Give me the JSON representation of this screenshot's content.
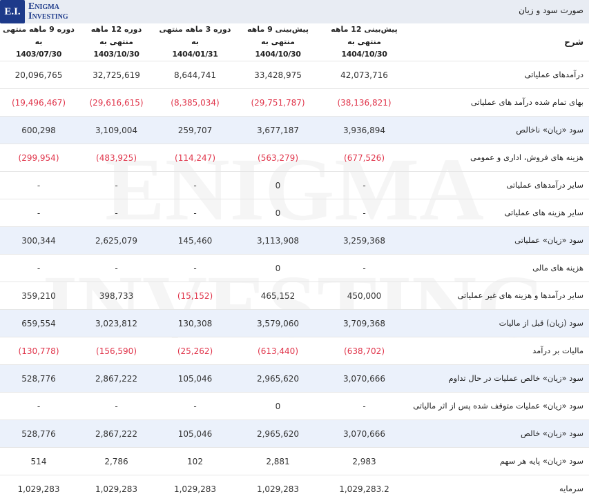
{
  "header": {
    "logo_initials": "E.I.",
    "logo_line1": "Enigma",
    "logo_line2": "Investing",
    "title": "صورت سود و زیان"
  },
  "watermark": "ENIGMA INVESTING",
  "columns": {
    "label": "شرح",
    "cols": [
      {
        "line1": "پیش‌بینی 12 ماهه منتهی به",
        "line2": "1404/10/30"
      },
      {
        "line1": "پیش‌بینی 9 ماهه منتهی به",
        "line2": "1404/10/30"
      },
      {
        "line1": "دوره 3 ماهه منتهی به",
        "line2": "1404/01/31"
      },
      {
        "line1": "دوره 12 ماهه منتهی به",
        "line2": "1403/10/30"
      },
      {
        "line1": "دوره 9 ماهه منتهی به",
        "line2": "1403/07/30"
      }
    ]
  },
  "rows": [
    {
      "label": "درآمدهای عملیاتی",
      "values": [
        "42,073,716",
        "33,428,975",
        "8,644,741",
        "32,725,619",
        "20,096,765"
      ],
      "highlight": false
    },
    {
      "label": "بهای تمام شده درآمد های عملیاتی",
      "values": [
        "(38,136,821)",
        "(29,751,787)",
        "(8,385,034)",
        "(29,616,615)",
        "(19,496,467)"
      ],
      "highlight": false
    },
    {
      "label": "سود «زیان» ناخالص",
      "values": [
        "3,936,894",
        "3,677,187",
        "259,707",
        "3,109,004",
        "600,298"
      ],
      "highlight": true
    },
    {
      "label": "هزینه های فروش، اداری و عمومی",
      "values": [
        "(677,526)",
        "(563,279)",
        "(114,247)",
        "(483,925)",
        "(299,954)"
      ],
      "highlight": false
    },
    {
      "label": "سایر درآمدهای عملیاتی",
      "values": [
        "-",
        "0",
        "-",
        "-",
        "-"
      ],
      "highlight": false
    },
    {
      "label": "سایر هزینه های عملیاتی",
      "values": [
        "-",
        "0",
        "-",
        "-",
        "-"
      ],
      "highlight": false
    },
    {
      "label": "سود «زیان» عملیاتی",
      "values": [
        "3,259,368",
        "3,113,908",
        "145,460",
        "2,625,079",
        "300,344"
      ],
      "highlight": true
    },
    {
      "label": "هزینه های مالی",
      "values": [
        "-",
        "0",
        "-",
        "-",
        "-"
      ],
      "highlight": false
    },
    {
      "label": "سایر درآمدها و هزینه های غیر عملیاتی",
      "values": [
        "450,000",
        "465,152",
        "(15,152)",
        "398,733",
        "359,210"
      ],
      "highlight": false
    },
    {
      "label": "سود (زیان) قبل از مالیات",
      "values": [
        "3,709,368",
        "3,579,060",
        "130,308",
        "3,023,812",
        "659,554"
      ],
      "highlight": true
    },
    {
      "label": "مالیات بر درآمد",
      "values": [
        "(638,702)",
        "(613,440)",
        "(25,262)",
        "(156,590)",
        "(130,778)"
      ],
      "highlight": false
    },
    {
      "label": "سود «زیان» خالص عملیات در حال تداوم",
      "values": [
        "3,070,666",
        "2,965,620",
        "105,046",
        "2,867,222",
        "528,776"
      ],
      "highlight": true
    },
    {
      "label": "سود «زیان» عملیات متوقف شده پس از اثر مالیاتی",
      "values": [
        "-",
        "0",
        "-",
        "-",
        "-"
      ],
      "highlight": false
    },
    {
      "label": "سود «زیان» خالص",
      "values": [
        "3,070,666",
        "2,965,620",
        "105,046",
        "2,867,222",
        "528,776"
      ],
      "highlight": true
    },
    {
      "label": "سود «زیان» پایه هر سهم",
      "values": [
        "2,983",
        "2,881",
        "102",
        "2,786",
        "514"
      ],
      "highlight": false
    },
    {
      "label": "سرمایه",
      "values": [
        "1,029,283.2",
        "1,029,283",
        "1,029,283",
        "1,029,283",
        "1,029,283"
      ],
      "highlight": false
    }
  ],
  "colors": {
    "negative": "#e0344a",
    "highlight_row": "#ebf1fb",
    "header_bar": "#e8ecf3",
    "brand": "#1d3a8a"
  }
}
